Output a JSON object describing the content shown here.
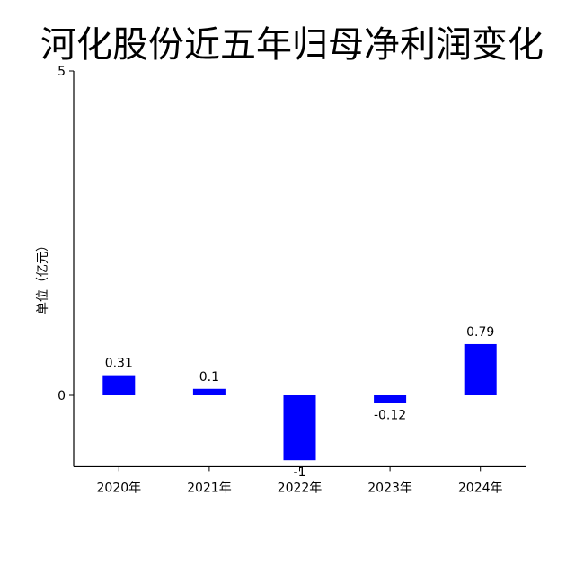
{
  "chart_data": {
    "type": "bar",
    "title": "河化股份近五年归母净利润变化",
    "xlabel": "",
    "ylabel": "单位（亿元）",
    "categories": [
      "2020年",
      "2021年",
      "2022年",
      "2023年",
      "2024年"
    ],
    "values": [
      0.31,
      0.1,
      -1,
      -0.12,
      0.79
    ],
    "data_labels": [
      "0.31",
      "0.1",
      "-1",
      "-0.12",
      "0.79"
    ],
    "y_ticks": [
      0,
      5
    ],
    "y_tick_labels": [
      "0",
      "5"
    ],
    "ylim": [
      -1.1,
      5
    ],
    "bar_color": "#0000ff",
    "grid": false,
    "legend": "none"
  }
}
